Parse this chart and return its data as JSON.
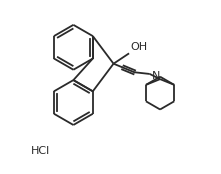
{
  "bg_color": "#ffffff",
  "line_color": "#2a2a2a",
  "line_width": 1.3,
  "text_color": "#2a2a2a",
  "hcl_label": "HCl",
  "oh_label": "OH",
  "n_label": "N",
  "font_size_oh": 8,
  "font_size_n": 8,
  "font_size_hcl": 8
}
